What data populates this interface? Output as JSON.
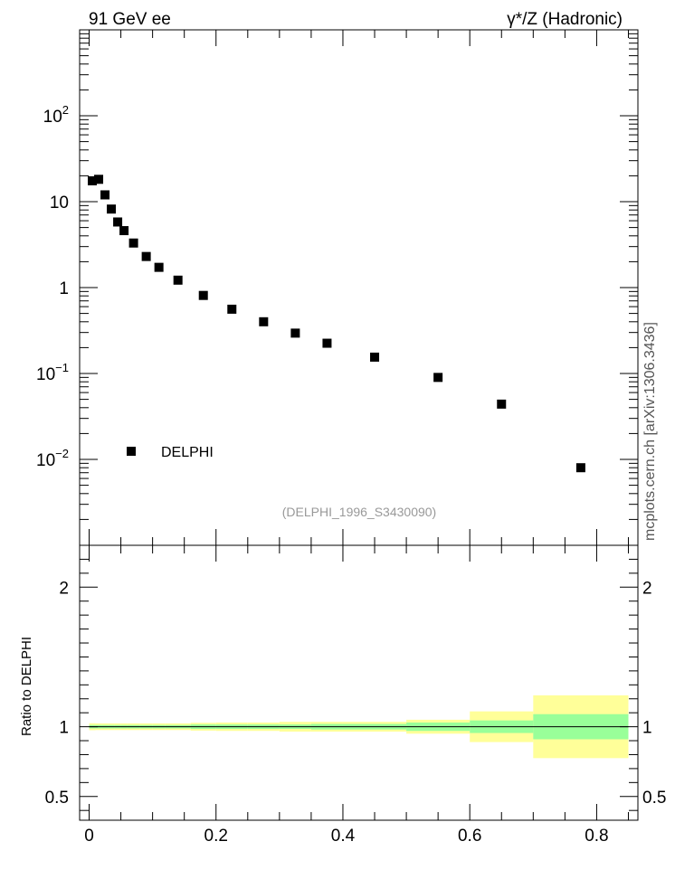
{
  "header": {
    "left_title": "91 GeV ee",
    "right_title": "γ*/Z (Hadronic)"
  },
  "side_label": "mcplots.cern.ch [arXiv:1306.3436]",
  "chart_data": [
    {
      "type": "scatter",
      "yscale": "log",
      "xlim": [
        -0.015,
        0.865
      ],
      "ylim": [
        0.001,
        1000
      ],
      "ytick_labels": [
        {
          "value": 0.01,
          "base": "10",
          "exp": "−2"
        },
        {
          "value": 0.1,
          "base": "10",
          "exp": "−1"
        },
        {
          "value": 1,
          "base": "1",
          "exp": ""
        },
        {
          "value": 10,
          "base": "10",
          "exp": ""
        },
        {
          "value": 100,
          "base": "10",
          "exp": "2"
        }
      ],
      "series": [
        {
          "name": "DELPHI",
          "x": [
            0.005,
            0.015,
            0.025,
            0.035,
            0.045,
            0.055,
            0.07,
            0.09,
            0.11,
            0.14,
            0.18,
            0.225,
            0.275,
            0.325,
            0.375,
            0.45,
            0.55,
            0.65,
            0.775
          ],
          "y": [
            17.5,
            18.2,
            12.0,
            8.2,
            5.8,
            4.6,
            3.3,
            2.3,
            1.72,
            1.22,
            0.81,
            0.56,
            0.4,
            0.295,
            0.225,
            0.155,
            0.09,
            0.044,
            0.008
          ]
        }
      ],
      "legend": {
        "entry": "DELPHI",
        "placement": "bottom-left"
      },
      "annotation": "(DELPHI_1996_S3430090)"
    },
    {
      "type": "area",
      "ylabel": "Ratio to DELPHI",
      "xlim": [
        -0.015,
        0.865
      ],
      "ylim": [
        0.33,
        2.3
      ],
      "ytick_values": [
        0.5,
        1,
        2
      ],
      "ytick_labels": [
        "0.5",
        "1",
        "2"
      ],
      "xtick_values": [
        0,
        0.2,
        0.4,
        0.6,
        0.8
      ],
      "xtick_labels": [
        "0",
        "0.2",
        "0.4",
        "0.6",
        "0.8"
      ],
      "reference_line": 1,
      "bins": [
        {
          "x0": 0.0,
          "x1": 0.01,
          "stat": 0.012,
          "total": 0.025
        },
        {
          "x0": 0.01,
          "x1": 0.02,
          "stat": 0.012,
          "total": 0.024
        },
        {
          "x0": 0.02,
          "x1": 0.03,
          "stat": 0.012,
          "total": 0.024
        },
        {
          "x0": 0.03,
          "x1": 0.04,
          "stat": 0.012,
          "total": 0.024
        },
        {
          "x0": 0.04,
          "x1": 0.05,
          "stat": 0.012,
          "total": 0.024
        },
        {
          "x0": 0.05,
          "x1": 0.06,
          "stat": 0.012,
          "total": 0.024
        },
        {
          "x0": 0.06,
          "x1": 0.08,
          "stat": 0.012,
          "total": 0.024
        },
        {
          "x0": 0.08,
          "x1": 0.1,
          "stat": 0.012,
          "total": 0.024
        },
        {
          "x0": 0.1,
          "x1": 0.12,
          "stat": 0.012,
          "total": 0.024
        },
        {
          "x0": 0.12,
          "x1": 0.16,
          "stat": 0.012,
          "total": 0.024
        },
        {
          "x0": 0.16,
          "x1": 0.2,
          "stat": 0.016,
          "total": 0.028
        },
        {
          "x0": 0.2,
          "x1": 0.25,
          "stat": 0.016,
          "total": 0.03
        },
        {
          "x0": 0.25,
          "x1": 0.3,
          "stat": 0.016,
          "total": 0.03
        },
        {
          "x0": 0.3,
          "x1": 0.35,
          "stat": 0.016,
          "total": 0.035
        },
        {
          "x0": 0.35,
          "x1": 0.4,
          "stat": 0.02,
          "total": 0.035
        },
        {
          "x0": 0.4,
          "x1": 0.5,
          "stat": 0.02,
          "total": 0.035
        },
        {
          "x0": 0.5,
          "x1": 0.6,
          "stat": 0.03,
          "total": 0.05
        },
        {
          "x0": 0.6,
          "x1": 0.7,
          "stat": 0.045,
          "total": 0.11
        },
        {
          "x0": 0.7,
          "x1": 0.85,
          "stat": 0.09,
          "total": 0.225
        }
      ],
      "colors": {
        "stat": "#99ff99",
        "total": "#ffff99"
      }
    }
  ]
}
